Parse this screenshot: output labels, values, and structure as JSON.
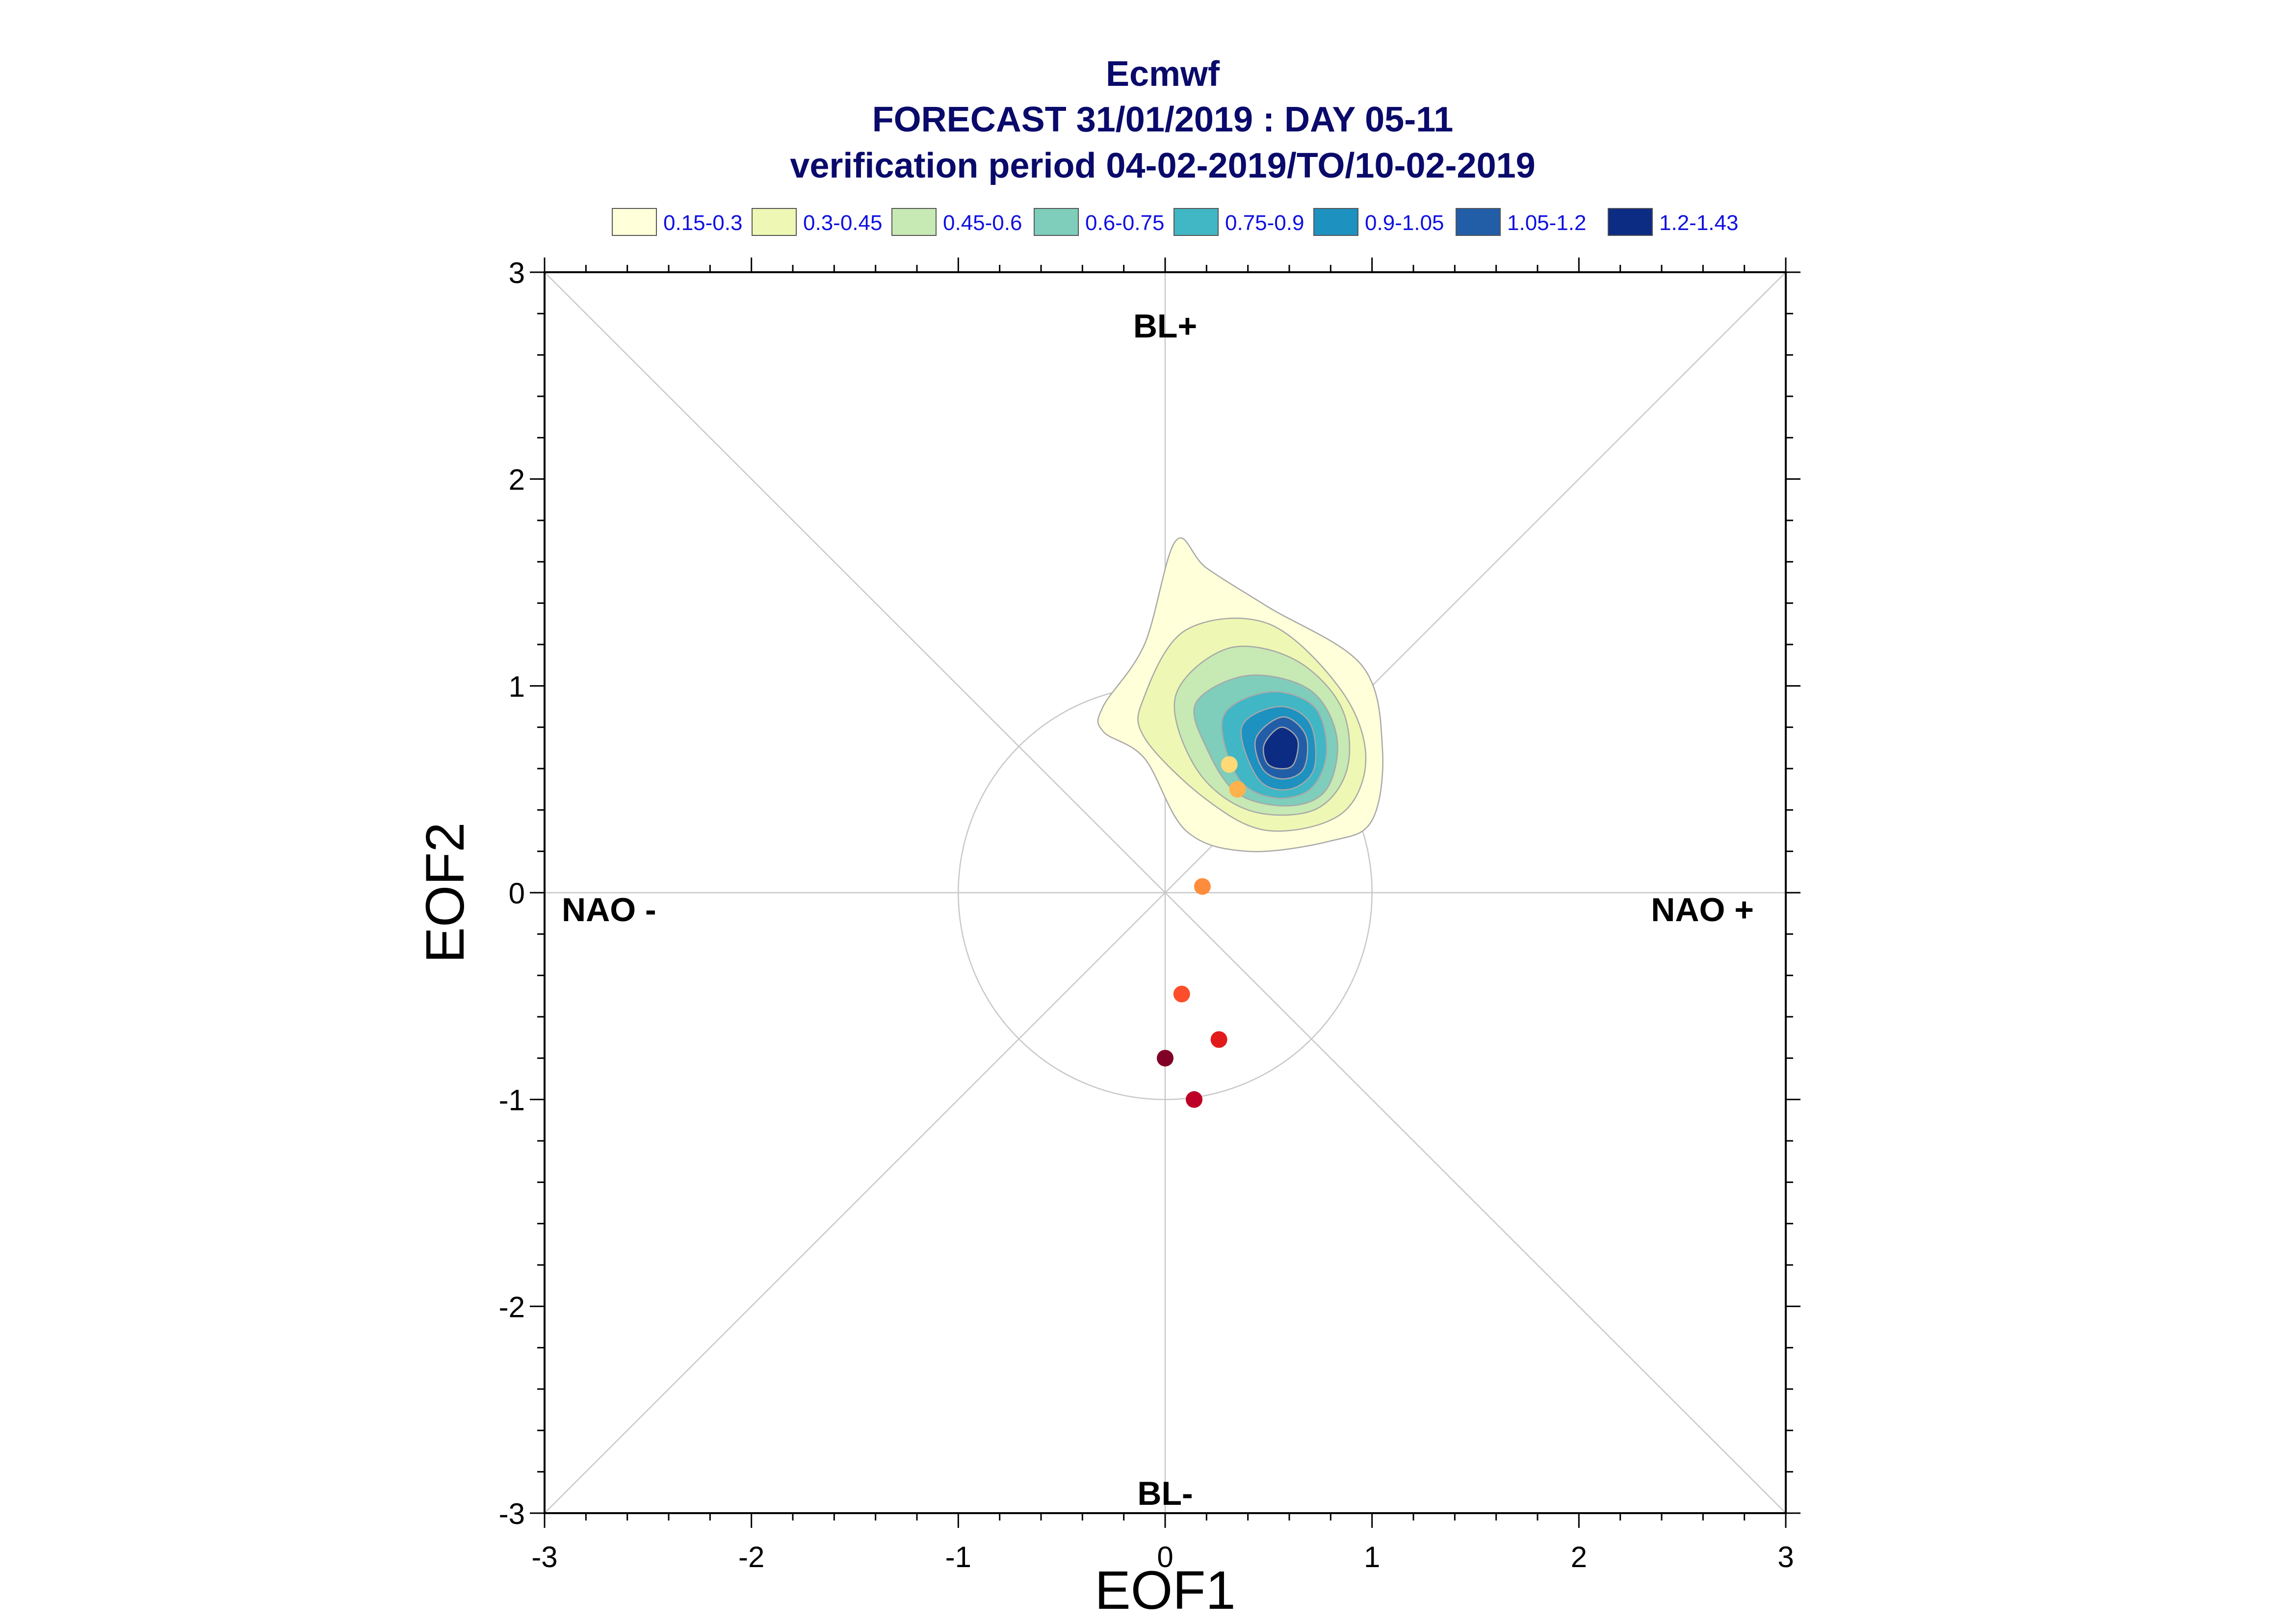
{
  "chart_data": {
    "type": "scatter",
    "title": "Ecmwf",
    "subtitle": "FORECAST 31/01/2019 : DAY 05-11",
    "subtitle2": "verification period 04-02-2019/TO/10-02-2019",
    "xlabel": "EOF1",
    "ylabel": "EOF2",
    "xlim": [
      -3,
      3
    ],
    "ylim": [
      -3,
      3
    ],
    "x_ticks": [
      "-3",
      "-2",
      "-1",
      "0",
      "1",
      "2",
      "3"
    ],
    "y_ticks": [
      "-3",
      "-2",
      "-1",
      "0",
      "1",
      "2",
      "3"
    ],
    "regime_labels": {
      "top": "BL+",
      "bottom": "BL-",
      "left": "NAO -",
      "right": "NAO +"
    },
    "reference_circle_radius": 1,
    "legend": [
      {
        "label": "0.15-0.3",
        "color": "#ffffd9"
      },
      {
        "label": "0.3-0.45",
        "color": "#eef8b4"
      },
      {
        "label": "0.45-0.6",
        "color": "#c7e9b4"
      },
      {
        "label": "0.6-0.75",
        "color": "#7fcdbb"
      },
      {
        "label": "0.75-0.9",
        "color": "#41b6c4"
      },
      {
        "label": "0.9-1.05",
        "color": "#1d91c0"
      },
      {
        "label": "1.05-1.2",
        "color": "#225ea8"
      },
      {
        "label": "1.2-1.43",
        "color": "#0c2c84"
      }
    ],
    "density_contours": [
      {
        "level": "0.15-0.3",
        "color": "#ffffd9",
        "points": [
          [
            -0.3,
            0.9
          ],
          [
            -0.1,
            1.2
          ],
          [
            0.05,
            1.7
          ],
          [
            0.2,
            1.57
          ],
          [
            0.5,
            1.38
          ],
          [
            0.95,
            1.1
          ],
          [
            1.05,
            0.7
          ],
          [
            1.0,
            0.35
          ],
          [
            0.8,
            0.25
          ],
          [
            0.4,
            0.2
          ],
          [
            0.1,
            0.3
          ],
          [
            -0.1,
            0.65
          ],
          [
            -0.3,
            0.78
          ]
        ]
      },
      {
        "level": "0.3-0.45",
        "color": "#eef8b4",
        "points": [
          [
            -0.1,
            0.95
          ],
          [
            0.1,
            1.27
          ],
          [
            0.5,
            1.3
          ],
          [
            0.85,
            0.98
          ],
          [
            0.97,
            0.65
          ],
          [
            0.85,
            0.38
          ],
          [
            0.5,
            0.3
          ],
          [
            0.2,
            0.45
          ],
          [
            -0.1,
            0.75
          ]
        ]
      },
      {
        "level": "0.45-0.6",
        "color": "#c7e9b4",
        "points": [
          [
            0.05,
            0.95
          ],
          [
            0.3,
            1.18
          ],
          [
            0.62,
            1.13
          ],
          [
            0.85,
            0.9
          ],
          [
            0.88,
            0.6
          ],
          [
            0.72,
            0.4
          ],
          [
            0.4,
            0.4
          ],
          [
            0.15,
            0.6
          ]
        ]
      },
      {
        "level": "0.6-0.75",
        "color": "#7fcdbb",
        "points": [
          [
            0.15,
            0.92
          ],
          [
            0.4,
            1.05
          ],
          [
            0.7,
            0.98
          ],
          [
            0.83,
            0.75
          ],
          [
            0.78,
            0.5
          ],
          [
            0.6,
            0.42
          ],
          [
            0.35,
            0.48
          ],
          [
            0.2,
            0.7
          ]
        ]
      },
      {
        "level": "0.75-0.9",
        "color": "#41b6c4",
        "points": [
          [
            0.28,
            0.85
          ],
          [
            0.5,
            0.97
          ],
          [
            0.72,
            0.9
          ],
          [
            0.78,
            0.68
          ],
          [
            0.7,
            0.5
          ],
          [
            0.52,
            0.46
          ],
          [
            0.35,
            0.56
          ]
        ]
      },
      {
        "level": "0.9-1.05",
        "color": "#1d91c0",
        "points": [
          [
            0.37,
            0.8
          ],
          [
            0.55,
            0.9
          ],
          [
            0.7,
            0.82
          ],
          [
            0.72,
            0.6
          ],
          [
            0.6,
            0.5
          ],
          [
            0.45,
            0.55
          ]
        ]
      },
      {
        "level": "1.05-1.2",
        "color": "#225ea8",
        "points": [
          [
            0.44,
            0.75
          ],
          [
            0.57,
            0.85
          ],
          [
            0.68,
            0.76
          ],
          [
            0.67,
            0.6
          ],
          [
            0.57,
            0.55
          ],
          [
            0.47,
            0.6
          ]
        ]
      },
      {
        "level": "1.2-1.43",
        "color": "#0c2c84",
        "points": [
          [
            0.48,
            0.72
          ],
          [
            0.56,
            0.8
          ],
          [
            0.64,
            0.74
          ],
          [
            0.62,
            0.62
          ],
          [
            0.55,
            0.6
          ],
          [
            0.49,
            0.63
          ]
        ]
      }
    ],
    "points": [
      {
        "x": 0.31,
        "y": 0.62,
        "color": "#fed976"
      },
      {
        "x": 0.35,
        "y": 0.5,
        "color": "#feb24c"
      },
      {
        "x": 0.18,
        "y": 0.03,
        "color": "#fd8d3c"
      },
      {
        "x": 0.08,
        "y": -0.49,
        "color": "#fc4e2a"
      },
      {
        "x": 0.26,
        "y": -0.71,
        "color": "#e31a1c"
      },
      {
        "x": 0.0,
        "y": -0.8,
        "color": "#800026"
      },
      {
        "x": 0.14,
        "y": -1.0,
        "color": "#bd0026"
      }
    ]
  }
}
